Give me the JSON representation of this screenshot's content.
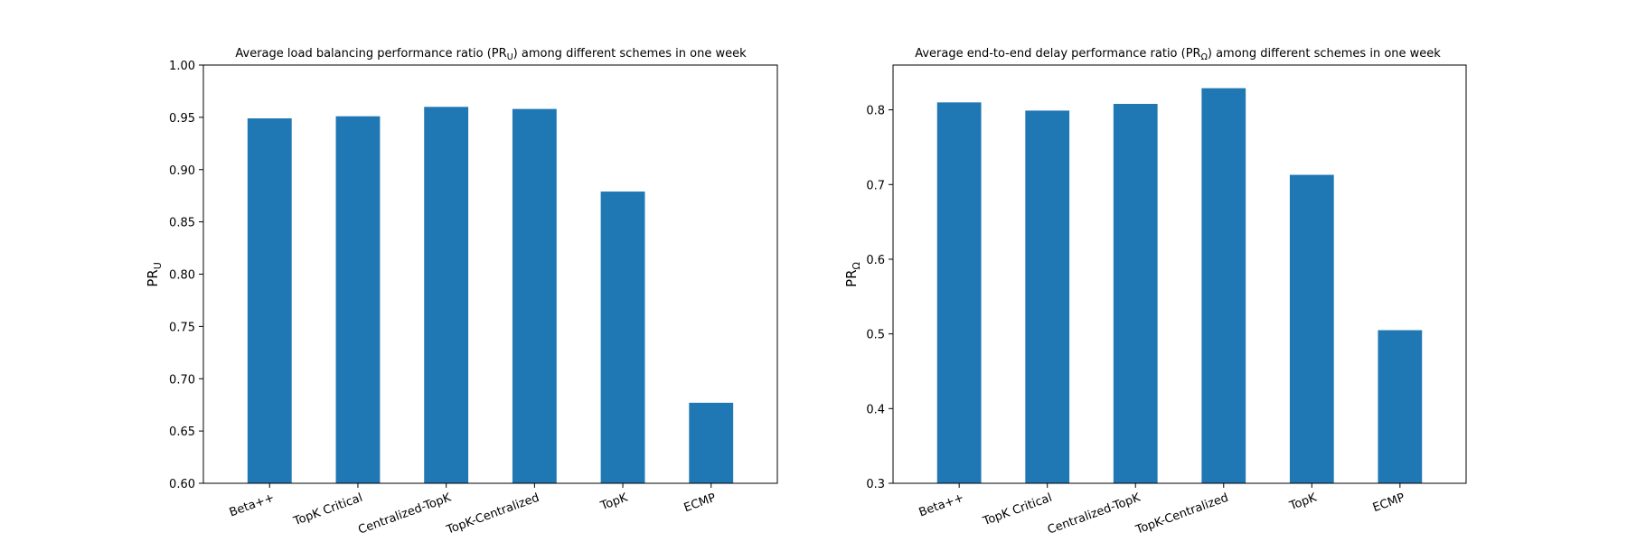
{
  "figure": {
    "background": "#ffffff",
    "bar_color": "#1f77b4"
  },
  "chart_data": [
    {
      "type": "bar",
      "title_parts": [
        "Average load balancing performance ratio (PR",
        "U",
        ") among different schemes in one week"
      ],
      "ylabel_parts": [
        "PR",
        "U"
      ],
      "xlabel": "",
      "categories": [
        "Beta++",
        "TopK Critical",
        "Centralized-TopK",
        "TopK-Centralized",
        "TopK",
        "ECMP"
      ],
      "values": [
        0.949,
        0.951,
        0.96,
        0.958,
        0.879,
        0.677
      ],
      "ylim": [
        0.6,
        1.0
      ],
      "yticks": [
        "0.60",
        "0.65",
        "0.70",
        "0.75",
        "0.80",
        "0.85",
        "0.90",
        "0.95",
        "1.00"
      ],
      "grid": false
    },
    {
      "type": "bar",
      "title_parts": [
        "Average end-to-end delay performance ratio (PR",
        "Ω",
        ") among different schemes in one week"
      ],
      "ylabel_parts": [
        "PR",
        "Ω"
      ],
      "xlabel": "",
      "categories": [
        "Beta++",
        "TopK Critical",
        "Centralized-TopK",
        "TopK-Centralized",
        "TopK",
        "ECMP"
      ],
      "values": [
        0.81,
        0.799,
        0.808,
        0.829,
        0.713,
        0.505
      ],
      "ylim": [
        0.3,
        0.86
      ],
      "yticks": [
        "0.3",
        "0.4",
        "0.5",
        "0.6",
        "0.7",
        "0.8"
      ],
      "grid": false
    }
  ]
}
